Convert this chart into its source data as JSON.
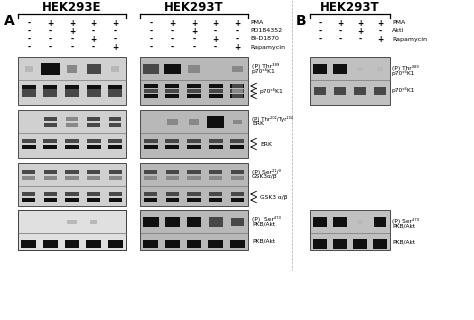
{
  "title_A_left": "HEK293E",
  "title_A_right": "HEK293T",
  "title_B": "HEK293T",
  "panel_A_label": "A",
  "panel_B_label": "B",
  "treatment_labels_A": [
    "PMA",
    "PD184352",
    "BI-D1870",
    "Rapamycin"
  ],
  "treatment_labels_B": [
    "PMA",
    "Akti",
    "Rapamycin"
  ],
  "treatments_A_left": [
    [
      "-",
      "+",
      "+",
      "+",
      "+"
    ],
    [
      "-",
      "-",
      "+",
      "-",
      "-"
    ],
    [
      "-",
      "-",
      "-",
      "+",
      "-"
    ],
    [
      "-",
      "-",
      "-",
      "-",
      "+"
    ]
  ],
  "treatments_A_right": [
    [
      "-",
      "+",
      "+",
      "+",
      "+"
    ],
    [
      "-",
      "-",
      "+",
      "-",
      "-"
    ],
    [
      "-",
      "-",
      "-",
      "+",
      "-"
    ],
    [
      "-",
      "-",
      "-",
      "-",
      "+"
    ]
  ],
  "treatments_B": [
    [
      "-",
      "+",
      "+",
      "+"
    ],
    [
      "-",
      "-",
      "+",
      "-"
    ],
    [
      "-",
      "-",
      "-",
      "+"
    ]
  ],
  "bg_color": "#f0f0f0",
  "box_bg_A_left": "#d0d0d0",
  "box_bg_A_right": "#b8b8b8",
  "box_bg_B": "#c0c0c0",
  "box_border": "#444444",
  "band_dark": "#101010",
  "band_mid": "#484848",
  "band_light": "#888888",
  "band_vlight": "#b8b8b8",
  "white_bg": "#e8e8e8"
}
